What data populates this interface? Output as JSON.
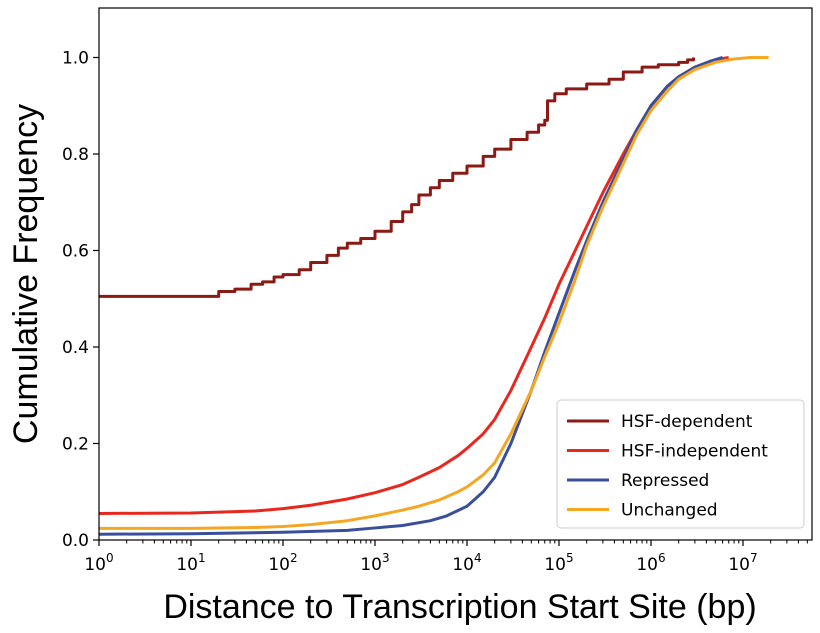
{
  "chart_data": {
    "type": "line",
    "title": "",
    "xlabel": "Distance to Transcription Start Site (bp)",
    "ylabel": "Cumulative Frequency",
    "xscale": "log",
    "xlim": [
      1,
      60000000
    ],
    "ylim": [
      0,
      1.05
    ],
    "xticks": [
      {
        "base": "10",
        "exp": "0"
      },
      {
        "base": "10",
        "exp": "1"
      },
      {
        "base": "10",
        "exp": "2"
      },
      {
        "base": "10",
        "exp": "3"
      },
      {
        "base": "10",
        "exp": "4"
      },
      {
        "base": "10",
        "exp": "5"
      },
      {
        "base": "10",
        "exp": "6"
      },
      {
        "base": "10",
        "exp": "7"
      }
    ],
    "yticks": [
      "0.0",
      "0.2",
      "0.4",
      "0.6",
      "0.8",
      "1.0"
    ],
    "grid": false,
    "legend_position": "lower-right",
    "series": [
      {
        "name": "HSF-dependent",
        "color": "#8b1a14",
        "step": true,
        "points": [
          [
            1,
            0.505
          ],
          [
            18,
            0.505
          ],
          [
            20,
            0.515
          ],
          [
            30,
            0.52
          ],
          [
            45,
            0.53
          ],
          [
            60,
            0.535
          ],
          [
            80,
            0.545
          ],
          [
            100,
            0.55
          ],
          [
            150,
            0.56
          ],
          [
            200,
            0.575
          ],
          [
            300,
            0.59
          ],
          [
            400,
            0.605
          ],
          [
            500,
            0.615
          ],
          [
            700,
            0.625
          ],
          [
            1000,
            0.64
          ],
          [
            1500,
            0.66
          ],
          [
            2000,
            0.68
          ],
          [
            2500,
            0.695
          ],
          [
            3000,
            0.715
          ],
          [
            4000,
            0.73
          ],
          [
            5000,
            0.745
          ],
          [
            7000,
            0.76
          ],
          [
            10000,
            0.775
          ],
          [
            15000,
            0.795
          ],
          [
            20000,
            0.81
          ],
          [
            30000,
            0.83
          ],
          [
            45000,
            0.845
          ],
          [
            60000,
            0.86
          ],
          [
            70000,
            0.87
          ],
          [
            75000,
            0.91
          ],
          [
            90000,
            0.925
          ],
          [
            120000,
            0.935
          ],
          [
            200000,
            0.945
          ],
          [
            350000,
            0.955
          ],
          [
            500000,
            0.97
          ],
          [
            800000,
            0.98
          ],
          [
            1200000,
            0.985
          ],
          [
            2000000,
            0.99
          ],
          [
            2500000,
            0.995
          ],
          [
            2900000,
            1.0
          ]
        ]
      },
      {
        "name": "HSF-independent",
        "color": "#e8281e",
        "step": false,
        "points": [
          [
            1,
            0.055
          ],
          [
            10,
            0.056
          ],
          [
            50,
            0.06
          ],
          [
            100,
            0.065
          ],
          [
            200,
            0.072
          ],
          [
            500,
            0.085
          ],
          [
            1000,
            0.098
          ],
          [
            2000,
            0.115
          ],
          [
            3000,
            0.13
          ],
          [
            5000,
            0.15
          ],
          [
            8000,
            0.175
          ],
          [
            10000,
            0.19
          ],
          [
            15000,
            0.22
          ],
          [
            20000,
            0.25
          ],
          [
            30000,
            0.31
          ],
          [
            50000,
            0.4
          ],
          [
            70000,
            0.46
          ],
          [
            100000,
            0.53
          ],
          [
            150000,
            0.6
          ],
          [
            200000,
            0.65
          ],
          [
            300000,
            0.72
          ],
          [
            500000,
            0.8
          ],
          [
            700000,
            0.85
          ],
          [
            1000000,
            0.9
          ],
          [
            1500000,
            0.94
          ],
          [
            2000000,
            0.96
          ],
          [
            3000000,
            0.98
          ],
          [
            5000000,
            0.995
          ],
          [
            7000000,
            1.0
          ]
        ]
      },
      {
        "name": "Repressed",
        "color": "#3a4f9c",
        "step": false,
        "points": [
          [
            1,
            0.012
          ],
          [
            10,
            0.013
          ],
          [
            100,
            0.016
          ],
          [
            500,
            0.02
          ],
          [
            1000,
            0.025
          ],
          [
            2000,
            0.03
          ],
          [
            4000,
            0.04
          ],
          [
            6000,
            0.05
          ],
          [
            10000,
            0.07
          ],
          [
            15000,
            0.1
          ],
          [
            20000,
            0.13
          ],
          [
            30000,
            0.2
          ],
          [
            50000,
            0.31
          ],
          [
            70000,
            0.39
          ],
          [
            100000,
            0.47
          ],
          [
            150000,
            0.56
          ],
          [
            200000,
            0.62
          ],
          [
            300000,
            0.7
          ],
          [
            500000,
            0.79
          ],
          [
            700000,
            0.85
          ],
          [
            1000000,
            0.9
          ],
          [
            1500000,
            0.94
          ],
          [
            2000000,
            0.96
          ],
          [
            3000000,
            0.98
          ],
          [
            4500000,
            0.993
          ],
          [
            6000000,
            1.0
          ]
        ]
      },
      {
        "name": "Unchanged",
        "color": "#f5a623",
        "step": false,
        "points": [
          [
            1,
            0.024
          ],
          [
            10,
            0.024
          ],
          [
            50,
            0.026
          ],
          [
            100,
            0.028
          ],
          [
            200,
            0.032
          ],
          [
            500,
            0.04
          ],
          [
            1000,
            0.05
          ],
          [
            2000,
            0.062
          ],
          [
            3000,
            0.07
          ],
          [
            5000,
            0.083
          ],
          [
            8000,
            0.1
          ],
          [
            10000,
            0.11
          ],
          [
            15000,
            0.135
          ],
          [
            20000,
            0.16
          ],
          [
            30000,
            0.22
          ],
          [
            50000,
            0.31
          ],
          [
            70000,
            0.38
          ],
          [
            100000,
            0.45
          ],
          [
            150000,
            0.54
          ],
          [
            200000,
            0.61
          ],
          [
            300000,
            0.69
          ],
          [
            500000,
            0.78
          ],
          [
            700000,
            0.84
          ],
          [
            1000000,
            0.89
          ],
          [
            1500000,
            0.93
          ],
          [
            2000000,
            0.955
          ],
          [
            3000000,
            0.975
          ],
          [
            5000000,
            0.99
          ],
          [
            8000000,
            0.997
          ],
          [
            12000000,
            1.0
          ],
          [
            19000000,
            1.0
          ]
        ]
      }
    ]
  }
}
